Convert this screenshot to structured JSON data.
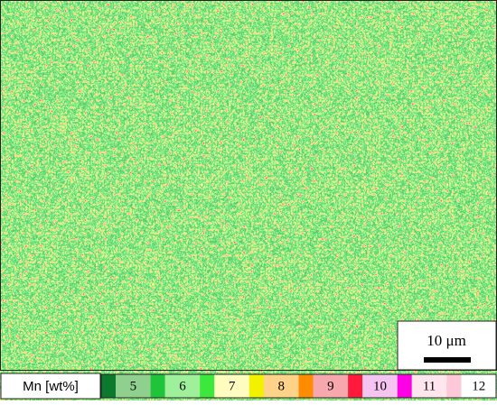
{
  "image": {
    "scale_bar": {
      "label": "10 μm"
    }
  },
  "legend": {
    "title": "Mn [wt%]",
    "ticks": [
      5,
      6,
      7,
      8,
      9,
      10,
      11,
      12
    ],
    "marker_colors": [
      "#0b7a2c",
      "#1fc43a",
      "#3be83b",
      "#f2f200",
      "#ff8c00",
      "#ff1a3c",
      "#ff00e6",
      "#ffc8d8"
    ],
    "cell_colors": [
      "#8fd08f",
      "#9ef09a",
      "#fffcc0",
      "#ffd28a",
      "#f6a8ae",
      "#f6c4f0",
      "#ffe6ee",
      "#ffffff"
    ]
  }
}
